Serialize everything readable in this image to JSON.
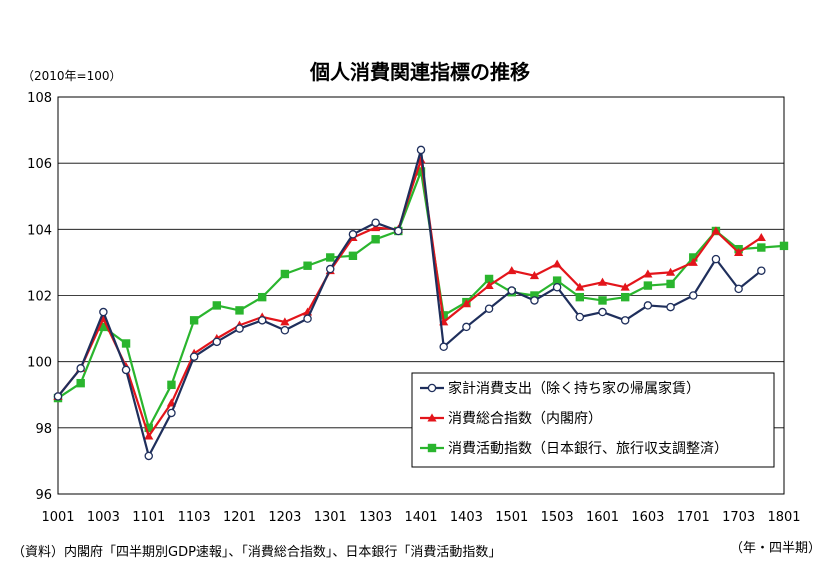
{
  "chart_data": {
    "type": "line",
    "title": "個人消費関連指標の推移",
    "unit_label": "（2010年=100）",
    "xlabel": "（年・四半期）",
    "ylabel": "",
    "ylim": [
      96,
      108
    ],
    "yticks": [
      "96",
      "98",
      "100",
      "102",
      "104",
      "106",
      "108"
    ],
    "categories": [
      "1001",
      "1002",
      "1003",
      "1004",
      "1101",
      "1102",
      "1103",
      "1104",
      "1201",
      "1202",
      "1203",
      "1204",
      "1301",
      "1302",
      "1303",
      "1304",
      "1401",
      "1402",
      "1403",
      "1404",
      "1501",
      "1502",
      "1503",
      "1504",
      "1601",
      "1602",
      "1603",
      "1604",
      "1701",
      "1702",
      "1703",
      "1704",
      "1801"
    ],
    "xtick_labels": [
      "1001",
      "1003",
      "1101",
      "1103",
      "1201",
      "1203",
      "1301",
      "1303",
      "1401",
      "1403",
      "1501",
      "1503",
      "1601",
      "1603",
      "1701",
      "1703",
      "1801"
    ],
    "grid": "horizontal",
    "legend_position": "lower-right",
    "series": [
      {
        "name": "家計消費支出（除く持ち家の帰属家賃）",
        "color": "#1f2f5c",
        "marker": "circle",
        "values": [
          98.95,
          99.8,
          101.5,
          99.75,
          97.15,
          98.45,
          100.15,
          100.6,
          101.0,
          101.25,
          100.95,
          101.3,
          102.8,
          103.85,
          104.2,
          103.95,
          106.4,
          100.45,
          101.05,
          101.6,
          102.15,
          101.85,
          102.25,
          101.35,
          101.5,
          101.25,
          101.7,
          101.65,
          102.0,
          103.1,
          102.2,
          102.75,
          null
        ]
      },
      {
        "name": "消費総合指数（内閣府）",
        "color": "#e3151b",
        "marker": "triangle",
        "values": [
          98.95,
          99.8,
          101.3,
          99.85,
          97.75,
          98.75,
          100.25,
          100.7,
          101.1,
          101.35,
          101.2,
          101.5,
          102.75,
          103.75,
          104.05,
          104.0,
          106.1,
          101.2,
          101.75,
          102.3,
          102.75,
          102.6,
          102.95,
          102.25,
          102.4,
          102.25,
          102.65,
          102.7,
          103.0,
          103.95,
          103.3,
          103.75,
          null
        ]
      },
      {
        "name": "消費活動指数（日本銀行、旅行収支調整済）",
        "color": "#2ab52e",
        "marker": "square",
        "values": [
          98.9,
          99.35,
          101.05,
          100.55,
          98.0,
          99.3,
          101.25,
          101.7,
          101.55,
          101.95,
          102.65,
          102.9,
          103.15,
          103.2,
          103.7,
          103.95,
          105.75,
          101.4,
          101.8,
          102.5,
          102.1,
          102.0,
          102.45,
          101.95,
          101.85,
          101.95,
          102.3,
          102.35,
          103.15,
          103.95,
          103.4,
          103.45,
          103.5
        ]
      }
    ]
  },
  "source_note": "（資料）内閣府「四半期別GDP速報」、「消費総合指数」、日本銀行「消費活動指数」"
}
